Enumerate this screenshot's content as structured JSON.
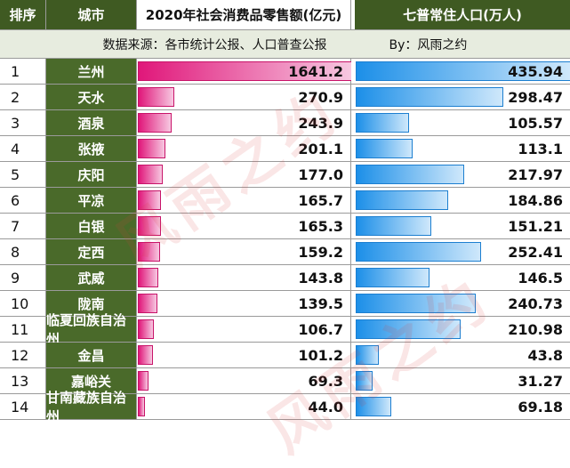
{
  "header": {
    "rank": "排序",
    "city": "城市",
    "sales": "2020年社会消费品零售额(亿元)",
    "population": "七普常住人口(万人)"
  },
  "note": {
    "source": "数据来源：各市统计公报、人口普查公报",
    "by": "By：风雨之约"
  },
  "watermark": "风雨之约",
  "rows": [
    {
      "rank": "1",
      "city": "兰州",
      "sales": "1641.2",
      "population": "435.94"
    },
    {
      "rank": "2",
      "city": "天水",
      "sales": "270.9",
      "population": "298.47"
    },
    {
      "rank": "3",
      "city": "酒泉",
      "sales": "243.9",
      "population": "105.57"
    },
    {
      "rank": "4",
      "city": "张掖",
      "sales": "201.1",
      "population": "113.1"
    },
    {
      "rank": "5",
      "city": "庆阳",
      "sales": "177.0",
      "population": "217.97"
    },
    {
      "rank": "6",
      "city": "平凉",
      "sales": "165.7",
      "population": "184.86"
    },
    {
      "rank": "7",
      "city": "白银",
      "sales": "165.3",
      "population": "151.21"
    },
    {
      "rank": "8",
      "city": "定西",
      "sales": "159.2",
      "population": "252.41"
    },
    {
      "rank": "9",
      "city": "武威",
      "sales": "143.8",
      "population": "146.5"
    },
    {
      "rank": "10",
      "city": "陇南",
      "sales": "139.5",
      "population": "240.73"
    },
    {
      "rank": "11",
      "city": "临夏回族自治州",
      "sales": "106.7",
      "population": "210.98"
    },
    {
      "rank": "12",
      "city": "金昌",
      "sales": "101.2",
      "population": "43.8"
    },
    {
      "rank": "13",
      "city": "嘉峪关",
      "sales": "69.3",
      "population": "31.27"
    },
    {
      "rank": "14",
      "city": "甘南藏族自治州",
      "sales": "44.0",
      "population": "69.18"
    }
  ],
  "colors": {
    "header_bg": "#3f5a22",
    "city_bg": "#4a6a2a",
    "sales_bar": "#e0177a",
    "pop_bar": "#1c8fe8"
  }
}
